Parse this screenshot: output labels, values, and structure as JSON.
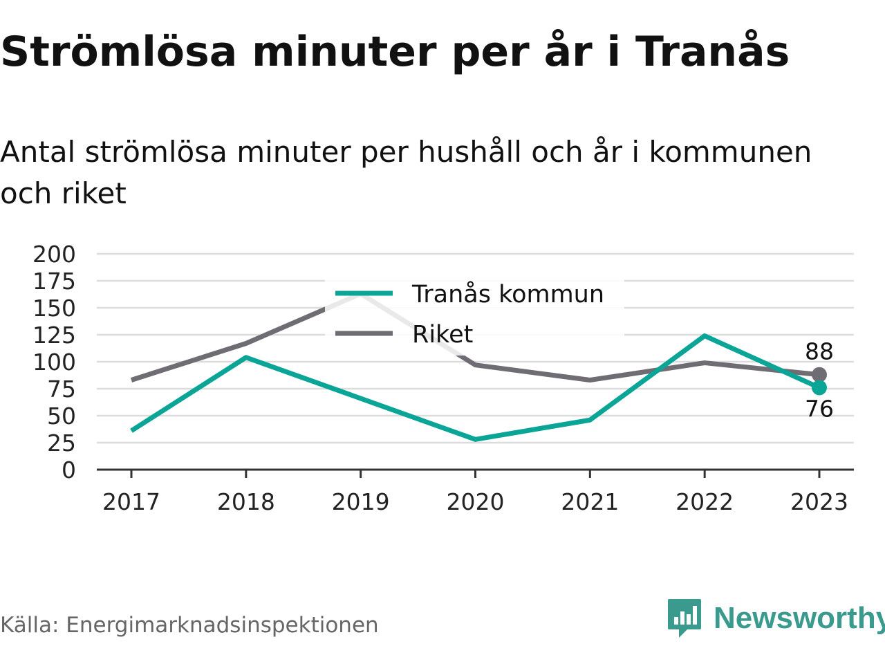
{
  "title": "Strömlösa minuter per år i Tranås",
  "subtitle": "Antal strömlösa minuter per hushåll och år i kommunen och riket",
  "source": "Källa: Energimarknadsinspektionen",
  "brand": {
    "name": "Newsworthy",
    "icon": "newsworthy-logo-icon",
    "color": "#3a9a8e"
  },
  "chart_data": {
    "type": "line",
    "categories": [
      "2017",
      "2018",
      "2019",
      "2020",
      "2021",
      "2022",
      "2023"
    ],
    "ylim": [
      0,
      200
    ],
    "yticks": [
      "0",
      "25",
      "50",
      "75",
      "100",
      "125",
      "150",
      "175",
      "200"
    ],
    "grid": true,
    "legend_position": "top-center",
    "series": [
      {
        "name": "Tranås kommun",
        "color": "#0aa596",
        "values": [
          36,
          104,
          66,
          28,
          46,
          124,
          76
        ],
        "end_label": "76"
      },
      {
        "name": "Riket",
        "color": "#6f6d73",
        "values": [
          83,
          117,
          163,
          97,
          83,
          99,
          88
        ],
        "end_label": "88"
      }
    ]
  }
}
